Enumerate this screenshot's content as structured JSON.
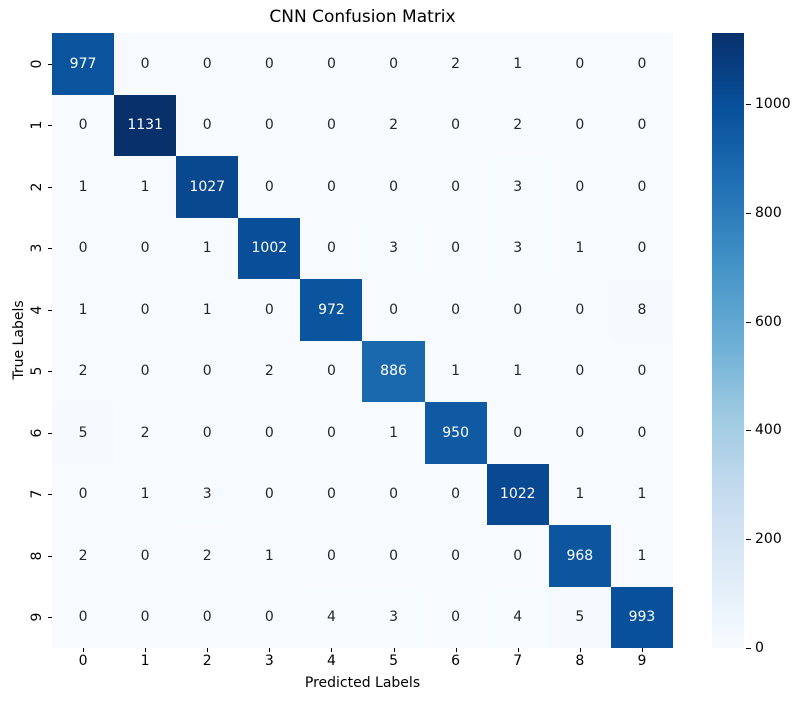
{
  "figure": {
    "background": "#ffffff"
  },
  "chart_data": {
    "type": "heatmap",
    "title": "CNN Confusion Matrix",
    "xlabel": "Predicted Labels",
    "ylabel": "True Labels",
    "x_ticklabels": [
      "0",
      "1",
      "2",
      "3",
      "4",
      "5",
      "6",
      "7",
      "8",
      "9"
    ],
    "y_ticklabels": [
      "0",
      "1",
      "2",
      "3",
      "4",
      "5",
      "6",
      "7",
      "8",
      "9"
    ],
    "matrix": [
      [
        977,
        0,
        0,
        0,
        0,
        0,
        2,
        1,
        0,
        0
      ],
      [
        0,
        1131,
        0,
        0,
        0,
        2,
        0,
        2,
        0,
        0
      ],
      [
        1,
        1,
        1027,
        0,
        0,
        0,
        0,
        3,
        0,
        0
      ],
      [
        0,
        0,
        1,
        1002,
        0,
        3,
        0,
        3,
        1,
        0
      ],
      [
        1,
        0,
        1,
        0,
        972,
        0,
        0,
        0,
        0,
        8
      ],
      [
        2,
        0,
        0,
        2,
        0,
        886,
        1,
        1,
        0,
        0
      ],
      [
        5,
        2,
        0,
        0,
        0,
        1,
        950,
        0,
        0,
        0
      ],
      [
        0,
        1,
        3,
        0,
        0,
        0,
        0,
        1022,
        1,
        1
      ],
      [
        2,
        0,
        2,
        1,
        0,
        0,
        0,
        0,
        968,
        1
      ],
      [
        0,
        0,
        0,
        0,
        4,
        3,
        0,
        4,
        5,
        993
      ]
    ],
    "vmin": 0,
    "vmax": 1131,
    "grid": false,
    "colormap": {
      "name": "Blues",
      "anchors": [
        "#f7fbff",
        "#deebf7",
        "#c6dbef",
        "#9ecae1",
        "#6baed6",
        "#4292c6",
        "#2171b5",
        "#08519c",
        "#08306b"
      ]
    },
    "annotation_text": {
      "on_dark": "#ffffff",
      "on_light": "#262626",
      "white_text_threshold": 0.5
    },
    "colorbar": {
      "position": "right",
      "ticks": [
        0,
        200,
        400,
        600,
        800,
        1000
      ],
      "tick_labels": [
        "0",
        "200",
        "400",
        "600",
        "800",
        "1000"
      ]
    },
    "axis_color": "#000000"
  }
}
